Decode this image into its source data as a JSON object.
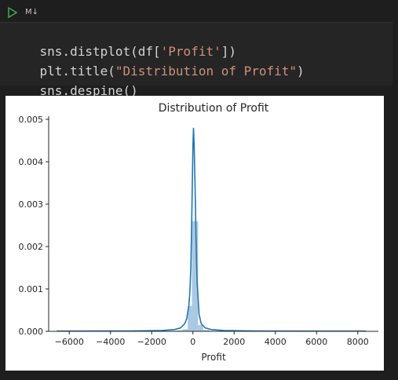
{
  "toolbar": {
    "cell_type": "M↓",
    "run_icon": "play-icon"
  },
  "code_lines": [
    [
      {
        "t": "sns.distplot(df[",
        "c": "plain"
      },
      {
        "t": "'Profit'",
        "c": "str"
      },
      {
        "t": "])",
        "c": "plain"
      }
    ],
    [
      {
        "t": "plt.title(",
        "c": "plain"
      },
      {
        "t": "\"Distribution of Profit\"",
        "c": "str"
      },
      {
        "t": ")",
        "c": "plain"
      }
    ],
    [
      {
        "t": "sns.despine()",
        "c": "plain"
      }
    ]
  ],
  "colors": {
    "kde": "#1f77b4",
    "hist": "#8fb6d8",
    "string": "#ce9178",
    "run": "#3fa34d"
  },
  "chart_data": {
    "type": "bar",
    "title": "Distribution of Profit",
    "xlabel": "Profit",
    "ylabel": "",
    "xlim": [
      -7000,
      9000
    ],
    "ylim": [
      0,
      0.005
    ],
    "xticks": [
      -6000,
      -4000,
      -2000,
      0,
      2000,
      4000,
      6000,
      8000
    ],
    "xtick_labels": [
      "−6000",
      "−4000",
      "−2000",
      "0",
      "2000",
      "4000",
      "6000",
      "8000"
    ],
    "yticks": [
      0,
      0.001,
      0.002,
      0.003,
      0.004,
      0.005
    ],
    "ytick_labels": [
      "0.000",
      "0.001",
      "0.002",
      "0.003",
      "0.004",
      "0.005"
    ],
    "histogram": [
      {
        "x0": -1100,
        "x1": -800,
        "density": 1e-05
      },
      {
        "x0": -800,
        "x1": -500,
        "density": 2e-05
      },
      {
        "x0": -500,
        "x1": -250,
        "density": 5e-05
      },
      {
        "x0": -250,
        "x1": -50,
        "density": 0.0006
      },
      {
        "x0": -50,
        "x1": 250,
        "density": 0.0026
      },
      {
        "x0": 250,
        "x1": 500,
        "density": 0.00015
      },
      {
        "x0": 500,
        "x1": 800,
        "density": 3e-05
      },
      {
        "x0": 800,
        "x1": 1100,
        "density": 1e-05
      }
    ],
    "kde": {
      "x": [
        -6600,
        -3000,
        -1500,
        -900,
        -600,
        -400,
        -300,
        -200,
        -150,
        -100,
        -50,
        0,
        30,
        60,
        100,
        150,
        200,
        300,
        400,
        600,
        900,
        1500,
        3000,
        6000,
        8400
      ],
      "y": [
        5e-06,
        1e-05,
        2e-05,
        4e-05,
        8e-05,
        0.00018,
        0.0003,
        0.0006,
        0.0009,
        0.0015,
        0.0028,
        0.0044,
        0.0048,
        0.0044,
        0.0035,
        0.0022,
        0.0012,
        0.0004,
        0.00018,
        8e-05,
        4e-05,
        2e-05,
        1e-05,
        6e-06,
        5e-06
      ]
    }
  }
}
